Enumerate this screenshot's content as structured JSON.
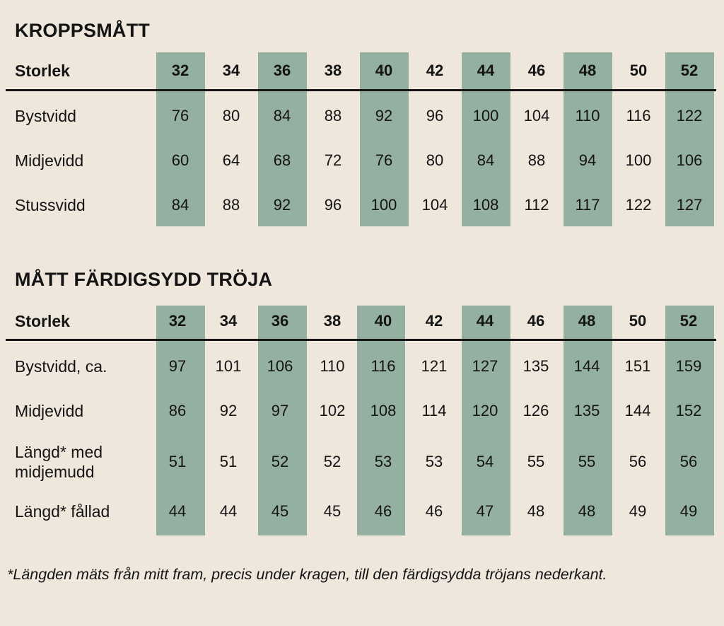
{
  "tables": [
    {
      "title": "KROPPSMÅTT",
      "header_label": "Storlek",
      "sizes": [
        "32",
        "34",
        "36",
        "38",
        "40",
        "42",
        "44",
        "46",
        "48",
        "50",
        "52"
      ],
      "rows": [
        {
          "label": "Bystvidd",
          "values": [
            "76",
            "80",
            "84",
            "88",
            "92",
            "96",
            "100",
            "104",
            "110",
            "116",
            "122"
          ]
        },
        {
          "label": "Midjevidd",
          "values": [
            "60",
            "64",
            "68",
            "72",
            "76",
            "80",
            "84",
            "88",
            "94",
            "100",
            "106"
          ]
        },
        {
          "label": "Stussvidd",
          "values": [
            "84",
            "88",
            "92",
            "96",
            "100",
            "104",
            "108",
            "112",
            "117",
            "122",
            "127"
          ]
        }
      ]
    },
    {
      "title": "MÅTT FÄRDIGSYDD TRÖJA",
      "header_label": "Storlek",
      "sizes": [
        "32",
        "34",
        "36",
        "38",
        "40",
        "42",
        "44",
        "46",
        "48",
        "50",
        "52"
      ],
      "rows": [
        {
          "label": "Bystvidd, ca.",
          "values": [
            "97",
            "101",
            "106",
            "110",
            "116",
            "121",
            "127",
            "135",
            "144",
            "151",
            "159"
          ]
        },
        {
          "label": "Midjevidd",
          "values": [
            "86",
            "92",
            "97",
            "102",
            "108",
            "114",
            "120",
            "126",
            "135",
            "144",
            "152"
          ]
        },
        {
          "label": "Längd* med\nmidjemudd",
          "values": [
            "51",
            "51",
            "52",
            "52",
            "53",
            "53",
            "54",
            "55",
            "55",
            "56",
            "56"
          ]
        },
        {
          "label": "Längd* fållad",
          "values": [
            "44",
            "44",
            "45",
            "45",
            "46",
            "46",
            "47",
            "48",
            "48",
            "49",
            "49"
          ]
        }
      ]
    }
  ],
  "footnote": "*Längden mäts från mitt fram, precis under kragen, till den färdigsydda tröjans nederkant.",
  "colors": {
    "background": "#efe6dc",
    "column_shade": "#94b0a1",
    "text": "#141414"
  }
}
